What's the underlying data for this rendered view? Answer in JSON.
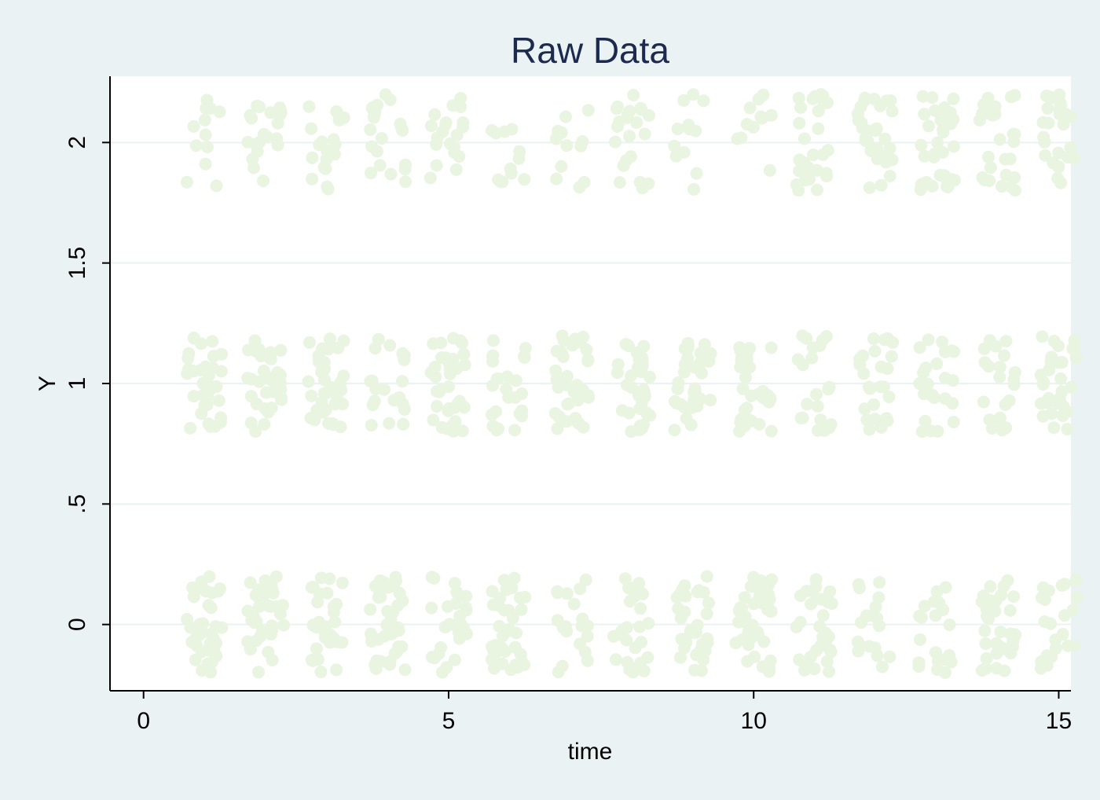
{
  "chart_data": {
    "type": "scatter",
    "title": "Raw Data",
    "xlabel": "time",
    "ylabel": "Y",
    "xlim": [
      -0.55,
      15.2
    ],
    "ylim": [
      -0.275,
      2.275
    ],
    "x_ticks": [
      0,
      5,
      10,
      15
    ],
    "x_tick_labels": [
      "0",
      "5",
      "10",
      "15"
    ],
    "y_ticks": [
      0,
      0.5,
      1,
      1.5,
      2
    ],
    "y_tick_labels": [
      "0",
      ".5",
      "1",
      "1.5",
      "2"
    ],
    "grid": true,
    "legend": "none",
    "point_color": "#e9f4e1",
    "background_color": "#eaf2f3",
    "plot_background": "#ffffff",
    "title_color": "#1b2a4e",
    "jitter": {
      "x": 0.3,
      "y": 0.2
    },
    "times": [
      1,
      2,
      3,
      4,
      5,
      6,
      7,
      8,
      9,
      10,
      11,
      12,
      13,
      14,
      15
    ],
    "levels": [
      0,
      1,
      2
    ],
    "points_per_cell": [
      [
        40,
        34,
        30,
        40,
        28,
        38,
        20,
        26,
        32,
        40,
        30,
        18,
        20,
        34,
        22
      ],
      [
        36,
        34,
        34,
        20,
        36,
        26,
        36,
        34,
        36,
        34,
        22,
        26,
        24,
        22,
        30
      ],
      [
        12,
        20,
        18,
        20,
        20,
        12,
        12,
        22,
        12,
        12,
        28,
        30,
        34,
        26,
        26
      ]
    ]
  }
}
